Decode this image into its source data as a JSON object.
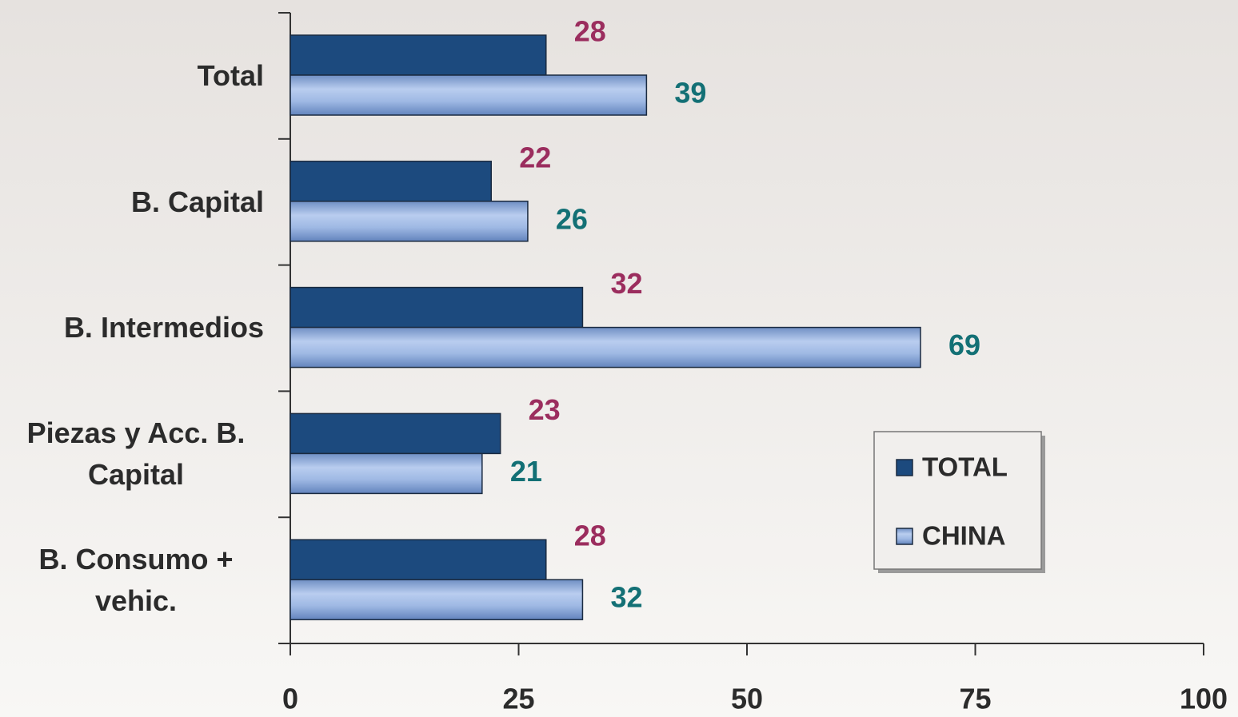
{
  "chart_data": {
    "type": "bar",
    "orientation": "horizontal",
    "categories": [
      "Total",
      "B. Capital",
      "B. Intermedios",
      "Piezas y Acc. B. Capital",
      "B. Consumo + vehic."
    ],
    "series": [
      {
        "name": "TOTAL",
        "color": "#1c4a7e",
        "label_color": "#9b2d5e",
        "values": [
          28,
          22,
          32,
          23,
          28
        ]
      },
      {
        "name": "CHINA",
        "color": "#8eaadb",
        "label_color": "#137075",
        "values": [
          39,
          26,
          69,
          21,
          32
        ]
      }
    ],
    "xlim": [
      0,
      100
    ],
    "xticks": [
      0,
      25,
      50,
      75,
      100
    ],
    "legend": "lower right"
  }
}
